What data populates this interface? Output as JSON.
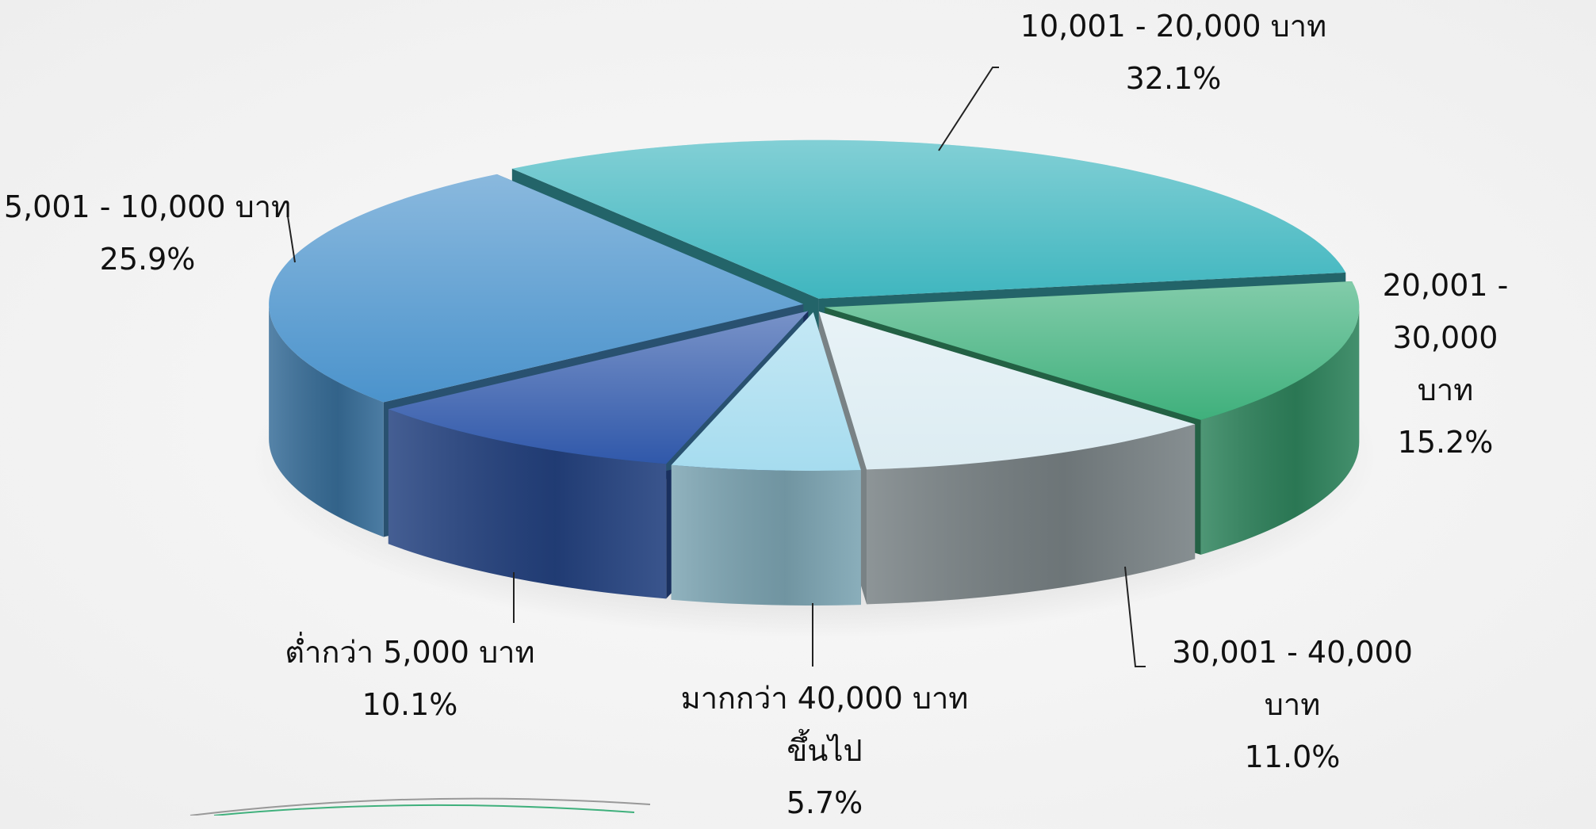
{
  "chart_data": {
    "type": "pie",
    "categories": [
      "10,001 - 20,000 บาท",
      "20,001 - 30,000 บาท",
      "30,001 - 40,000 บาท",
      "มากกว่า 40,000 บาท\nขึ้นไป",
      "ต่ำกว่า 5,000 บาท",
      "5,001 - 10,000 บาท"
    ],
    "values": [
      32.1,
      15.2,
      11.0,
      5.7,
      10.1,
      25.9
    ],
    "value_labels": [
      "32.1%",
      "15.2%",
      "11.0%",
      "5.7%",
      "10.1%",
      "25.9%"
    ],
    "colors": [
      "#3fb6bf",
      "#3fb07c",
      "#dcecf2",
      "#a6dcef",
      "#3058aa",
      "#4b93cc"
    ]
  }
}
